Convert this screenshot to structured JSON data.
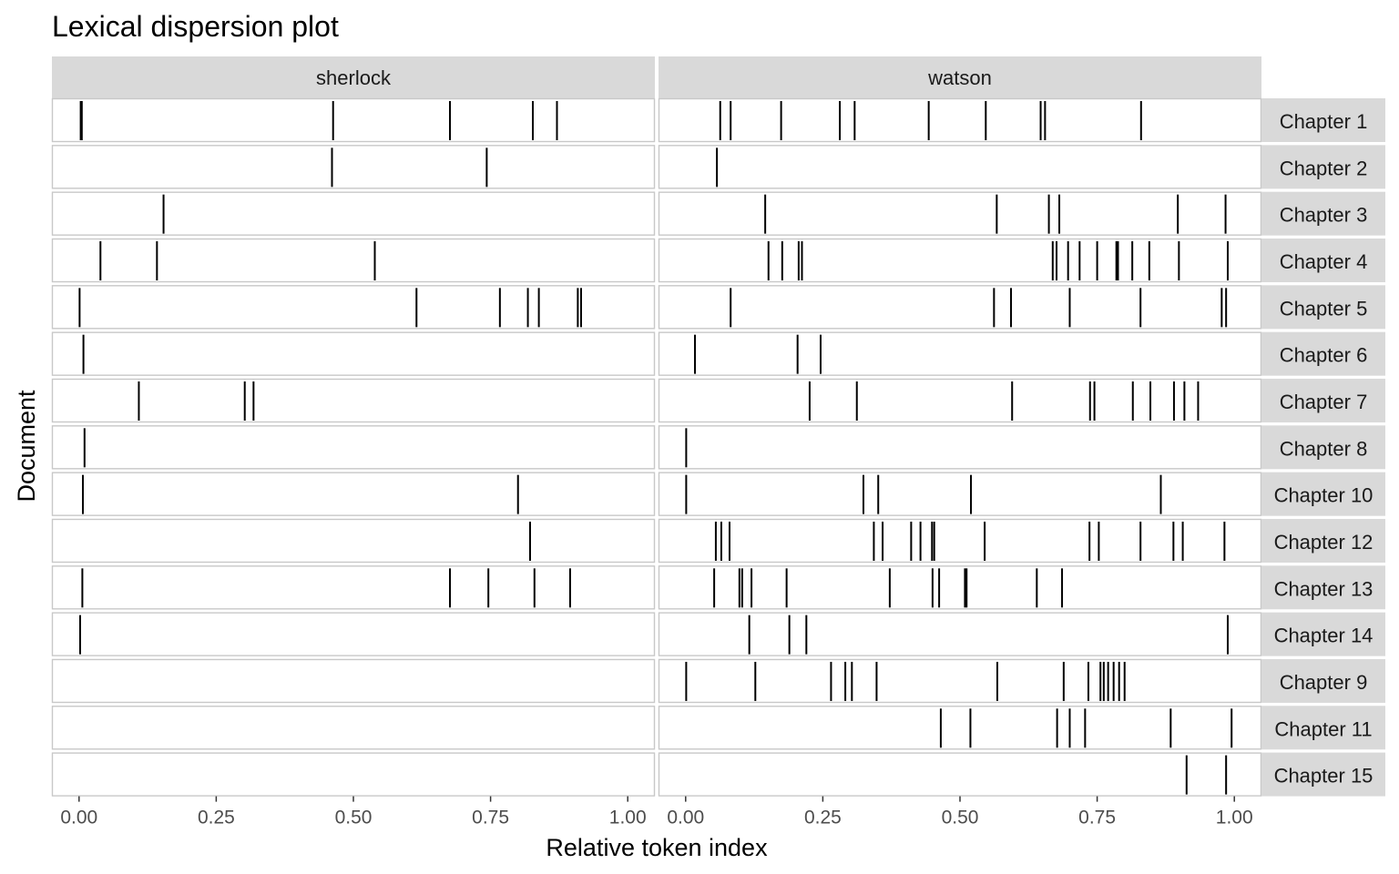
{
  "chart_data": {
    "type": "dispersion",
    "title": "Lexical dispersion plot",
    "xlabel": "Relative token index",
    "ylabel": "Document",
    "xlim": [
      0,
      1
    ],
    "x_ticks": [
      "0.00",
      "0.25",
      "0.50",
      "0.75",
      "1.00"
    ],
    "facets": [
      "sherlock",
      "watson"
    ],
    "documents": [
      "Chapter 1",
      "Chapter 2",
      "Chapter 3",
      "Chapter 4",
      "Chapter 5",
      "Chapter 6",
      "Chapter 7",
      "Chapter 8",
      "Chapter 10",
      "Chapter 12",
      "Chapter 13",
      "Chapter 14",
      "Chapter 9",
      "Chapter 11",
      "Chapter 15"
    ],
    "grid": false,
    "series": [
      {
        "name": "sherlock",
        "positions": [
          [
            0.003,
            0.005,
            0.463,
            0.676,
            0.827,
            0.871
          ],
          [
            0.461,
            0.743
          ],
          [
            0.154
          ],
          [
            0.039,
            0.142,
            0.539
          ],
          [
            0.001,
            0.615,
            0.767,
            0.818,
            0.838,
            0.909,
            0.915
          ],
          [
            0.008
          ],
          [
            0.109,
            0.302,
            0.318
          ],
          [
            0.01
          ],
          [
            0.007,
            0.8
          ],
          [
            0.822
          ],
          [
            0.006,
            0.676,
            0.746,
            0.83,
            0.895
          ],
          [
            0.002
          ],
          [],
          [],
          []
        ]
      },
      {
        "name": "watson",
        "positions": [
          [
            0.063,
            0.082,
            0.174,
            0.281,
            0.308,
            0.443,
            0.547,
            0.647,
            0.655,
            0.83
          ],
          [
            0.057
          ],
          [
            0.145,
            0.567,
            0.662,
            0.681,
            0.897,
            0.984
          ],
          [
            0.151,
            0.176,
            0.206,
            0.212,
            0.669,
            0.676,
            0.697,
            0.718,
            0.75,
            0.785,
            0.788,
            0.814,
            0.845,
            0.899,
            0.988
          ],
          [
            0.082,
            0.562,
            0.593,
            0.7,
            0.829,
            0.977,
            0.985
          ],
          [
            0.017,
            0.204,
            0.246
          ],
          [
            0.226,
            0.312,
            0.595,
            0.737,
            0.745,
            0.815,
            0.847,
            0.89,
            0.909,
            0.934
          ],
          [
            0.001
          ],
          [
            0.001,
            0.324,
            0.351,
            0.52,
            0.866
          ],
          [
            0.055,
            0.065,
            0.08,
            0.343,
            0.359,
            0.411,
            0.428,
            0.449,
            0.453,
            0.545,
            0.736,
            0.753,
            0.829,
            0.889,
            0.906,
            0.982
          ],
          [
            0.052,
            0.098,
            0.103,
            0.12,
            0.184,
            0.372,
            0.45,
            0.462,
            0.509,
            0.512,
            0.64,
            0.686
          ],
          [
            0.116,
            0.189,
            0.22,
            0.988
          ],
          [
            0.001,
            0.127,
            0.265,
            0.291,
            0.303,
            0.348,
            0.568,
            0.689,
            0.734,
            0.756,
            0.762,
            0.77,
            0.78,
            0.79,
            0.8
          ],
          [
            0.465,
            0.519,
            0.677,
            0.7,
            0.728,
            0.884,
            0.995
          ],
          [
            0.913,
            0.985
          ]
        ]
      }
    ]
  }
}
